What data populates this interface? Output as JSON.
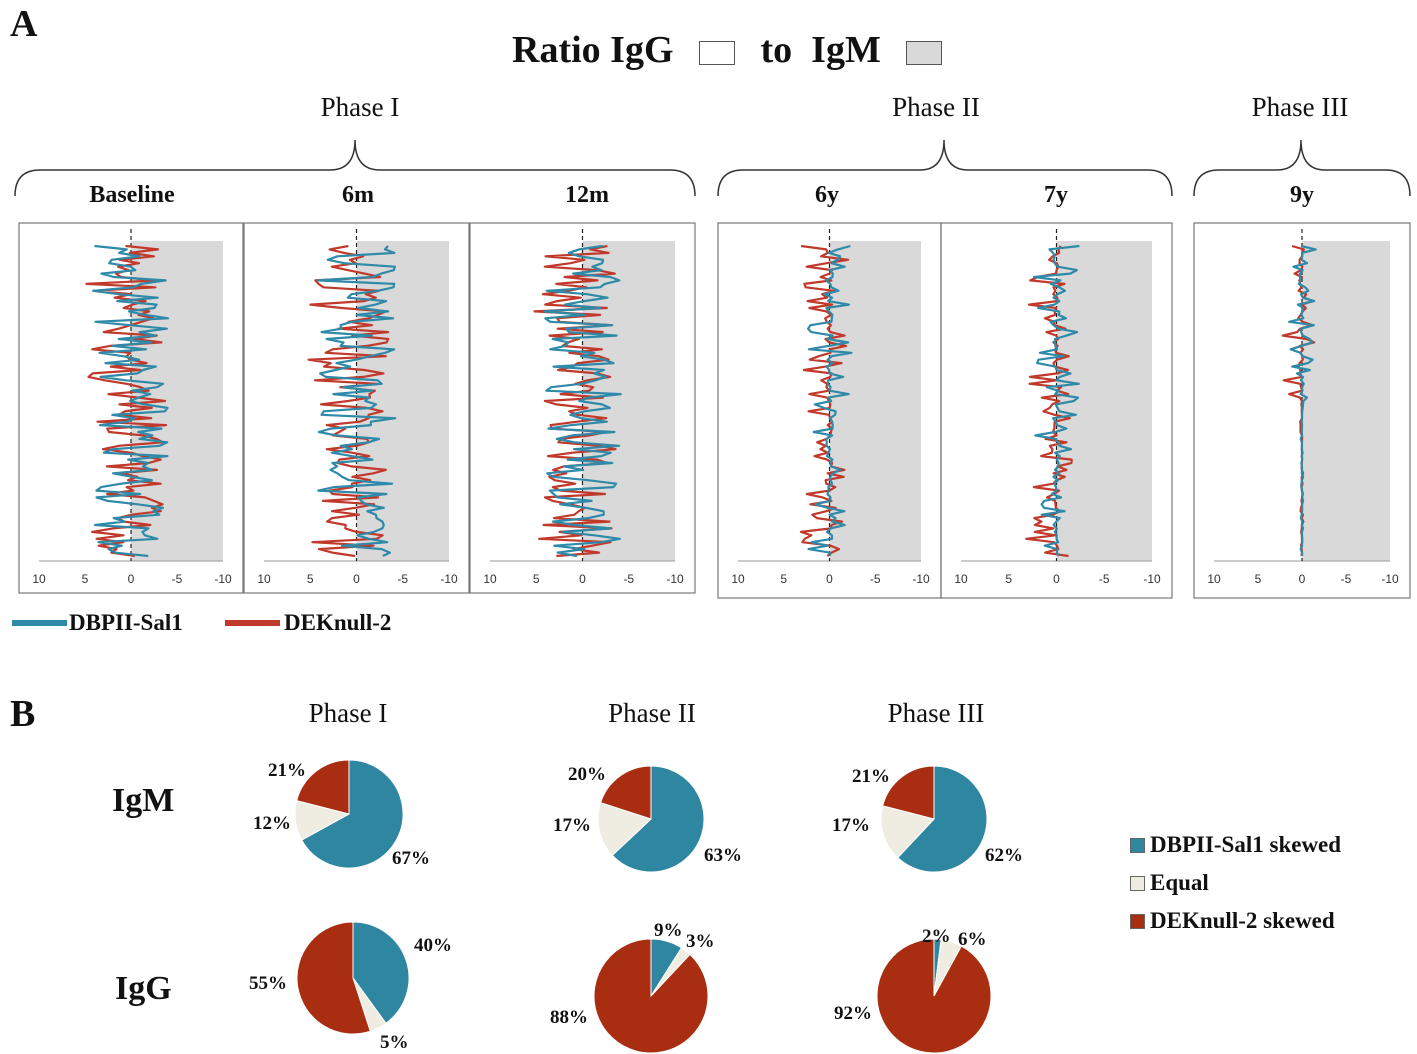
{
  "panel_a": {
    "letter": "A",
    "title_part1": "Ratio IgG",
    "title_part2": "to",
    "title_part3": "IgM",
    "phases": [
      "Phase I",
      "Phase II",
      "Phase III"
    ],
    "series_legend": [
      {
        "name": "DBPII-Sal1",
        "color": "#2e8aa8"
      },
      {
        "name": "DEKnull-2",
        "color": "#c0392b"
      }
    ]
  },
  "panel_b": {
    "letter": "B",
    "phases": [
      "Phase I",
      "Phase II",
      "Phase III"
    ],
    "rows": [
      "IgM",
      "IgG"
    ],
    "legend": [
      {
        "label": "DBPII-Sal1 skewed",
        "color": "#2e86a0"
      },
      {
        "label": "Equal",
        "color": "#efece1"
      },
      {
        "label": "DEKnull-2 skewed",
        "color": "#a92d10"
      }
    ]
  },
  "chart_data": [
    {
      "type": "line",
      "orientation": "horizontal-values",
      "panels": [
        "Baseline",
        "6m",
        "12m",
        "6y",
        "7y",
        "9y"
      ],
      "panel_phase": [
        "Phase I",
        "Phase I",
        "Phase I",
        "Phase II",
        "Phase II",
        "Phase III"
      ],
      "x_ticks": [
        "10",
        "5",
        "0",
        "-5",
        "-10"
      ],
      "xlim": [
        10,
        -10
      ],
      "shaded_region": "IgM",
      "series": [
        {
          "name": "DBPII-Sal1"
        },
        {
          "name": "DEKnull-2"
        }
      ]
    },
    {
      "type": "pie",
      "categories": [
        "DBPII-Sal1 skewed",
        "Equal",
        "DEKnull-2 skewed"
      ],
      "pies": [
        {
          "row": "IgM",
          "phase": "Phase I",
          "values": [
            67,
            12,
            21
          ],
          "labels": [
            "67%",
            "12%",
            "21%"
          ]
        },
        {
          "row": "IgM",
          "phase": "Phase II",
          "values": [
            63,
            17,
            20
          ],
          "labels": [
            "63%",
            "17%",
            "20%"
          ]
        },
        {
          "row": "IgM",
          "phase": "Phase III",
          "values": [
            62,
            17,
            21
          ],
          "labels": [
            "62%",
            "17%",
            "21%"
          ]
        },
        {
          "row": "IgG",
          "phase": "Phase I",
          "values": [
            40,
            5,
            55
          ],
          "labels": [
            "40%",
            "5%",
            "55%"
          ]
        },
        {
          "row": "IgG",
          "phase": "Phase II",
          "values": [
            9,
            3,
            88
          ],
          "labels": [
            "9%",
            "3%",
            "88%"
          ]
        },
        {
          "row": "IgG",
          "phase": "Phase III",
          "values": [
            2,
            6,
            92
          ],
          "labels": [
            "2%",
            "6%",
            "92%"
          ]
        }
      ]
    }
  ]
}
